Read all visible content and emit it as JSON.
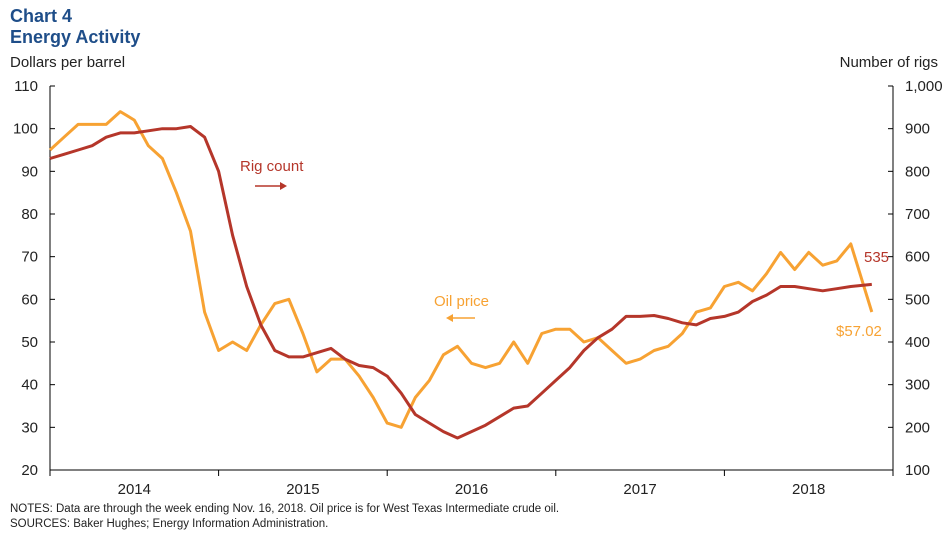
{
  "header": {
    "chart_number": "Chart 4",
    "title": "Energy Activity"
  },
  "notes": "NOTES: Data are through the week ending Nov. 16, 2018. Oil price is for West Texas Intermediate crude oil.",
  "sources": "SOURCES: Baker Hughes; Energy Information  Administration.",
  "colors": {
    "oil": "#F7A233",
    "rig": "#B5362A",
    "title": "#1F4E89"
  },
  "chart_data": {
    "type": "line",
    "ylabel_left": "Dollars per barrel",
    "ylabel_right": "Number of rigs",
    "ylim_left": [
      20,
      110
    ],
    "ylim_right": [
      100,
      1000
    ],
    "yticks_left": [
      "20",
      "30",
      "40",
      "50",
      "60",
      "70",
      "80",
      "90",
      "100",
      "110"
    ],
    "yticks_right": [
      "100",
      "200",
      "300",
      "400",
      "500",
      "600",
      "700",
      "800",
      "900",
      "1,000"
    ],
    "xlim": [
      "2014-01",
      "2018-12"
    ],
    "xticks": [
      "2014",
      "2015",
      "2016",
      "2017",
      "2018"
    ],
    "grid": false,
    "annotations": {
      "rig_label": "Rig count",
      "oil_label": "Oil price",
      "rig_last": "535",
      "oil_last": "$57.02"
    },
    "x": [
      "2014-01",
      "2014-02",
      "2014-03",
      "2014-04",
      "2014-05",
      "2014-06",
      "2014-07",
      "2014-08",
      "2014-09",
      "2014-10",
      "2014-11",
      "2014-12",
      "2015-01",
      "2015-02",
      "2015-03",
      "2015-04",
      "2015-05",
      "2015-06",
      "2015-07",
      "2015-08",
      "2015-09",
      "2015-10",
      "2015-11",
      "2015-12",
      "2016-01",
      "2016-02",
      "2016-03",
      "2016-04",
      "2016-05",
      "2016-06",
      "2016-07",
      "2016-08",
      "2016-09",
      "2016-10",
      "2016-11",
      "2016-12",
      "2017-01",
      "2017-02",
      "2017-03",
      "2017-04",
      "2017-05",
      "2017-06",
      "2017-07",
      "2017-08",
      "2017-09",
      "2017-10",
      "2017-11",
      "2017-12",
      "2018-01",
      "2018-02",
      "2018-03",
      "2018-04",
      "2018-05",
      "2018-06",
      "2018-07",
      "2018-08",
      "2018-09",
      "2018-10",
      "2018-11-16"
    ],
    "series": [
      {
        "name": "Oil price",
        "axis": "left",
        "values": [
          95,
          98,
          101,
          101,
          101,
          104,
          102,
          96,
          93,
          85,
          76,
          57,
          48,
          50,
          48,
          54,
          59,
          60,
          52,
          43,
          46,
          46,
          42,
          37,
          31,
          30,
          37,
          41,
          47,
          49,
          45,
          44,
          45,
          50,
          45,
          52,
          53,
          53,
          50,
          51,
          48,
          45,
          46,
          48,
          49,
          52,
          57,
          58,
          63,
          64,
          62,
          66,
          71,
          67,
          71,
          68,
          69,
          73,
          57.02
        ]
      },
      {
        "name": "Rig count",
        "axis": "right",
        "values": [
          830,
          840,
          850,
          860,
          880,
          890,
          890,
          895,
          900,
          900,
          905,
          880,
          800,
          650,
          530,
          440,
          380,
          365,
          365,
          375,
          385,
          360,
          345,
          340,
          320,
          280,
          230,
          210,
          190,
          175,
          190,
          205,
          225,
          245,
          250,
          280,
          310,
          340,
          380,
          410,
          430,
          460,
          460,
          462,
          455,
          445,
          440,
          455,
          460,
          470,
          495,
          510,
          530,
          530,
          525,
          520,
          525,
          530,
          535
        ]
      }
    ]
  }
}
